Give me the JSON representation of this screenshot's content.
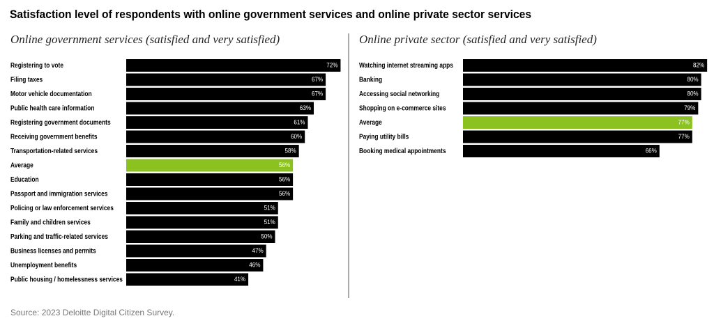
{
  "title": "Satisfaction level of respondents with online government services and online private sector services",
  "chart_data": [
    {
      "type": "bar",
      "orientation": "horizontal",
      "subtitle": "Online government services (satisfied and very satisfied)",
      "categories": [
        "Registering to vote",
        "Filing taxes",
        "Motor vehicle documentation",
        "Public health care information",
        "Registering government documents",
        "Receiving government benefits",
        "Transportation-related services",
        "Average",
        "Education",
        "Passport and immigration services",
        "Policing or law enforcement services",
        "Family and children services",
        "Parking and traffic-related services",
        "Business licenses and permits",
        "Unemployment benefits",
        "Public housing / homelessness services"
      ],
      "values": [
        72,
        67,
        67,
        63,
        61,
        60,
        58,
        56,
        56,
        56,
        51,
        51,
        50,
        47,
        46,
        41
      ],
      "value_labels": [
        "72%",
        "67%",
        "67%",
        "63%",
        "61%",
        "60%",
        "58%",
        "56%",
        "56%",
        "56%",
        "51%",
        "51%",
        "50%",
        "47%",
        "46%",
        "41%"
      ],
      "colors": [
        "#000000",
        "#000000",
        "#000000",
        "#000000",
        "#000000",
        "#000000",
        "#000000",
        "#8cc21f",
        "#000000",
        "#000000",
        "#000000",
        "#000000",
        "#000000",
        "#000000",
        "#000000",
        "#000000"
      ]
    },
    {
      "type": "bar",
      "orientation": "horizontal",
      "subtitle": "Online private sector (satisfied and very satisfied)",
      "categories": [
        "Watching internet streaming apps",
        "Banking",
        "Accessing social networking",
        "Shopping on e-commerce sites",
        "Average",
        "Paying utility bills",
        "Booking medical appointments"
      ],
      "values": [
        82,
        80,
        80,
        79,
        77,
        77,
        66
      ],
      "value_labels": [
        "82%",
        "80%",
        "80%",
        "79%",
        "77%",
        "77%",
        "66%"
      ],
      "colors": [
        "#000000",
        "#000000",
        "#000000",
        "#000000",
        "#8cc21f",
        "#000000",
        "#000000"
      ]
    }
  ],
  "source": "Source: 2023 Deloitte Digital Citizen Survey."
}
